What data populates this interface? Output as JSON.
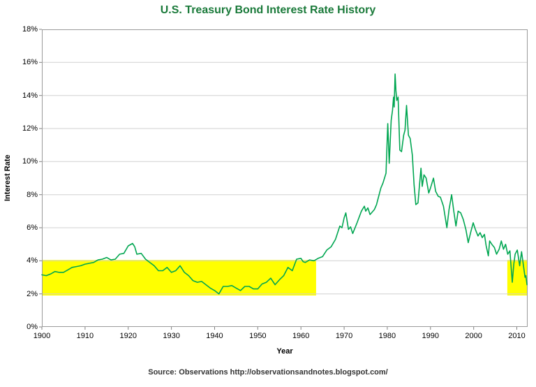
{
  "header": {
    "title_color": "#1a7a3a"
  },
  "footer": {
    "source": "Source: Observations  http://observationsandnotes.blogspot.com/"
  },
  "chart_data": {
    "type": "line",
    "title": "U.S. Treasury Bond Interest Rate History",
    "xlabel": "Year",
    "ylabel": "Interest Rate",
    "xlim": [
      1900,
      2012.5
    ],
    "ylim": [
      0,
      18
    ],
    "y_tick_labels": [
      "0%",
      "2%",
      "4%",
      "6%",
      "8%",
      "10%",
      "12%",
      "14%",
      "16%",
      "18%"
    ],
    "x_tick_labels": [
      "1900",
      "1910",
      "1920",
      "1930",
      "1940",
      "1950",
      "1960",
      "1970",
      "1980",
      "1990",
      "2000",
      "2010"
    ],
    "grid": "horizontal-only",
    "grid_color": "#d0d0d0",
    "axis_color": "#9a9a9a",
    "legend": "none",
    "line_color": "#00a651",
    "highlight_color": "#ffff00",
    "highlight_bands": [
      {
        "x0": 1900,
        "x1": 1963.5,
        "y0": 1.9,
        "y1": 4.05,
        "meaning": "period of roughly 2%-4% interest rates"
      },
      {
        "x0": 2007.8,
        "x1": 2012.5,
        "y0": 1.9,
        "y1": 4.05,
        "meaning": "recent return to roughly 2%-4% interest rates"
      }
    ],
    "series": [
      {
        "name": "U.S. Treasury bond interest rate",
        "points": [
          [
            1900,
            3.15
          ],
          [
            1901,
            3.1
          ],
          [
            1902,
            3.2
          ],
          [
            1903,
            3.35
          ],
          [
            1904,
            3.3
          ],
          [
            1905,
            3.3
          ],
          [
            1906,
            3.45
          ],
          [
            1907,
            3.6
          ],
          [
            1908,
            3.65
          ],
          [
            1909,
            3.7
          ],
          [
            1910,
            3.8
          ],
          [
            1911,
            3.85
          ],
          [
            1912,
            3.9
          ],
          [
            1913,
            4.05
          ],
          [
            1914,
            4.1
          ],
          [
            1915,
            4.2
          ],
          [
            1916,
            4.05
          ],
          [
            1917,
            4.1
          ],
          [
            1918,
            4.4
          ],
          [
            1919,
            4.45
          ],
          [
            1920,
            4.9
          ],
          [
            1921,
            5.05
          ],
          [
            1921.5,
            4.85
          ],
          [
            1922,
            4.4
          ],
          [
            1923,
            4.45
          ],
          [
            1924,
            4.1
          ],
          [
            1925,
            3.9
          ],
          [
            1926,
            3.7
          ],
          [
            1927,
            3.4
          ],
          [
            1928,
            3.4
          ],
          [
            1929,
            3.6
          ],
          [
            1930,
            3.3
          ],
          [
            1931,
            3.4
          ],
          [
            1932,
            3.7
          ],
          [
            1933,
            3.3
          ],
          [
            1934,
            3.1
          ],
          [
            1935,
            2.8
          ],
          [
            1936,
            2.7
          ],
          [
            1937,
            2.75
          ],
          [
            1938,
            2.55
          ],
          [
            1939,
            2.35
          ],
          [
            1940,
            2.2
          ],
          [
            1941,
            2.0
          ],
          [
            1942,
            2.45
          ],
          [
            1943,
            2.45
          ],
          [
            1944,
            2.5
          ],
          [
            1945,
            2.35
          ],
          [
            1946,
            2.2
          ],
          [
            1947,
            2.45
          ],
          [
            1948,
            2.45
          ],
          [
            1949,
            2.3
          ],
          [
            1950,
            2.3
          ],
          [
            1951,
            2.6
          ],
          [
            1952,
            2.7
          ],
          [
            1953,
            2.95
          ],
          [
            1954,
            2.55
          ],
          [
            1955,
            2.85
          ],
          [
            1956,
            3.1
          ],
          [
            1957,
            3.6
          ],
          [
            1958,
            3.4
          ],
          [
            1959,
            4.1
          ],
          [
            1960,
            4.15
          ],
          [
            1960.5,
            3.95
          ],
          [
            1961,
            3.9
          ],
          [
            1962,
            4.05
          ],
          [
            1963,
            4.0
          ],
          [
            1964,
            4.15
          ],
          [
            1965,
            4.25
          ],
          [
            1966,
            4.65
          ],
          [
            1967,
            4.85
          ],
          [
            1968,
            5.3
          ],
          [
            1969,
            6.1
          ],
          [
            1969.5,
            6.0
          ],
          [
            1970,
            6.6
          ],
          [
            1970.4,
            6.9
          ],
          [
            1971,
            5.9
          ],
          [
            1971.5,
            6.05
          ],
          [
            1972,
            5.65
          ],
          [
            1973,
            6.3
          ],
          [
            1974,
            7.0
          ],
          [
            1974.7,
            7.3
          ],
          [
            1975,
            7.0
          ],
          [
            1975.5,
            7.2
          ],
          [
            1976,
            6.8
          ],
          [
            1977,
            7.1
          ],
          [
            1977.5,
            7.4
          ],
          [
            1978,
            7.9
          ],
          [
            1978.5,
            8.4
          ],
          [
            1979,
            8.7
          ],
          [
            1979.7,
            9.3
          ],
          [
            1980.1,
            12.3
          ],
          [
            1980.45,
            9.9
          ],
          [
            1980.9,
            12.5
          ],
          [
            1981.2,
            13.1
          ],
          [
            1981.45,
            13.9
          ],
          [
            1981.6,
            13.3
          ],
          [
            1981.8,
            15.3
          ],
          [
            1982.0,
            14.3
          ],
          [
            1982.2,
            13.7
          ],
          [
            1982.5,
            13.9
          ],
          [
            1982.9,
            10.7
          ],
          [
            1983.3,
            10.6
          ],
          [
            1983.8,
            11.6
          ],
          [
            1984.1,
            11.9
          ],
          [
            1984.45,
            13.4
          ],
          [
            1984.9,
            11.6
          ],
          [
            1985.3,
            11.4
          ],
          [
            1985.8,
            10.4
          ],
          [
            1986.2,
            8.6
          ],
          [
            1986.6,
            7.4
          ],
          [
            1987.1,
            7.5
          ],
          [
            1987.5,
            8.7
          ],
          [
            1987.8,
            9.6
          ],
          [
            1988.1,
            8.5
          ],
          [
            1988.5,
            9.2
          ],
          [
            1989.0,
            9.0
          ],
          [
            1989.6,
            8.1
          ],
          [
            1990.0,
            8.4
          ],
          [
            1990.7,
            9.0
          ],
          [
            1991.2,
            8.2
          ],
          [
            1991.8,
            7.9
          ],
          [
            1992.3,
            7.85
          ],
          [
            1993.0,
            7.3
          ],
          [
            1993.8,
            6.0
          ],
          [
            1994.3,
            7.1
          ],
          [
            1994.9,
            8.0
          ],
          [
            1995.4,
            7.0
          ],
          [
            1995.9,
            6.1
          ],
          [
            1996.4,
            7.0
          ],
          [
            1997.0,
            6.9
          ],
          [
            1997.6,
            6.5
          ],
          [
            1998.2,
            5.9
          ],
          [
            1998.75,
            5.1
          ],
          [
            1999.3,
            5.7
          ],
          [
            1999.9,
            6.3
          ],
          [
            2000.4,
            5.9
          ],
          [
            2001.0,
            5.5
          ],
          [
            2001.5,
            5.7
          ],
          [
            2002.0,
            5.4
          ],
          [
            2002.5,
            5.6
          ],
          [
            2002.9,
            4.9
          ],
          [
            2003.4,
            4.3
          ],
          [
            2003.7,
            5.2
          ],
          [
            2004.2,
            5.0
          ],
          [
            2004.8,
            4.8
          ],
          [
            2005.3,
            4.4
          ],
          [
            2005.9,
            4.7
          ],
          [
            2006.4,
            5.2
          ],
          [
            2006.9,
            4.7
          ],
          [
            2007.4,
            5.0
          ],
          [
            2007.9,
            4.4
          ],
          [
            2008.4,
            4.6
          ],
          [
            2008.95,
            2.7
          ],
          [
            2009.3,
            3.8
          ],
          [
            2009.6,
            4.4
          ],
          [
            2010.1,
            4.65
          ],
          [
            2010.65,
            3.7
          ],
          [
            2011.1,
            4.55
          ],
          [
            2011.9,
            3.0
          ],
          [
            2012.1,
            3.1
          ],
          [
            2012.35,
            2.55
          ]
        ]
      }
    ]
  }
}
